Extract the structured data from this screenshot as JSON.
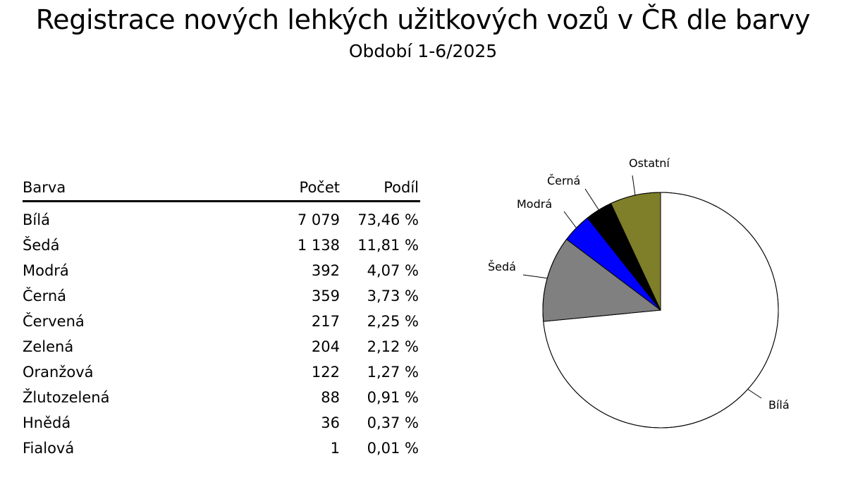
{
  "title": "Registrace nových lehkých užitkových vozů v ČR dle barvy",
  "subtitle": "Období 1-6/2025",
  "table": {
    "headers": [
      "Barva",
      "Počet",
      "Podíl"
    ],
    "rows": [
      {
        "color_name": "Bílá",
        "count": "7 079",
        "share": "73,46 %"
      },
      {
        "color_name": "Šedá",
        "count": "1 138",
        "share": "11,81 %"
      },
      {
        "color_name": "Modrá",
        "count": "392",
        "share": "4,07 %"
      },
      {
        "color_name": "Černá",
        "count": "359",
        "share": "3,73 %"
      },
      {
        "color_name": "Červená",
        "count": "217",
        "share": "2,25 %"
      },
      {
        "color_name": "Zelená",
        "count": "204",
        "share": "2,12 %"
      },
      {
        "color_name": "Oranžová",
        "count": "122",
        "share": "1,27 %"
      },
      {
        "color_name": "Žlutozelená",
        "count": "88",
        "share": "0,91 %"
      },
      {
        "color_name": "Hnědá",
        "count": "36",
        "share": "0,37 %"
      },
      {
        "color_name": "Fialová",
        "count": "1",
        "share": "0,01 %"
      }
    ]
  },
  "chart_data": {
    "type": "pie",
    "start_angle": "12 o'clock",
    "direction": "clockwise",
    "slices": [
      {
        "label": "Bílá",
        "value": 73.46,
        "color": "#ffffff"
      },
      {
        "label": "Šedá",
        "value": 11.81,
        "color": "#808080"
      },
      {
        "label": "Modrá",
        "value": 4.07,
        "color": "#0000ff"
      },
      {
        "label": "Černá",
        "value": 3.73,
        "color": "#000000"
      },
      {
        "label": "Ostatní",
        "value": 6.93,
        "color": "#7f7f2a"
      }
    ]
  }
}
